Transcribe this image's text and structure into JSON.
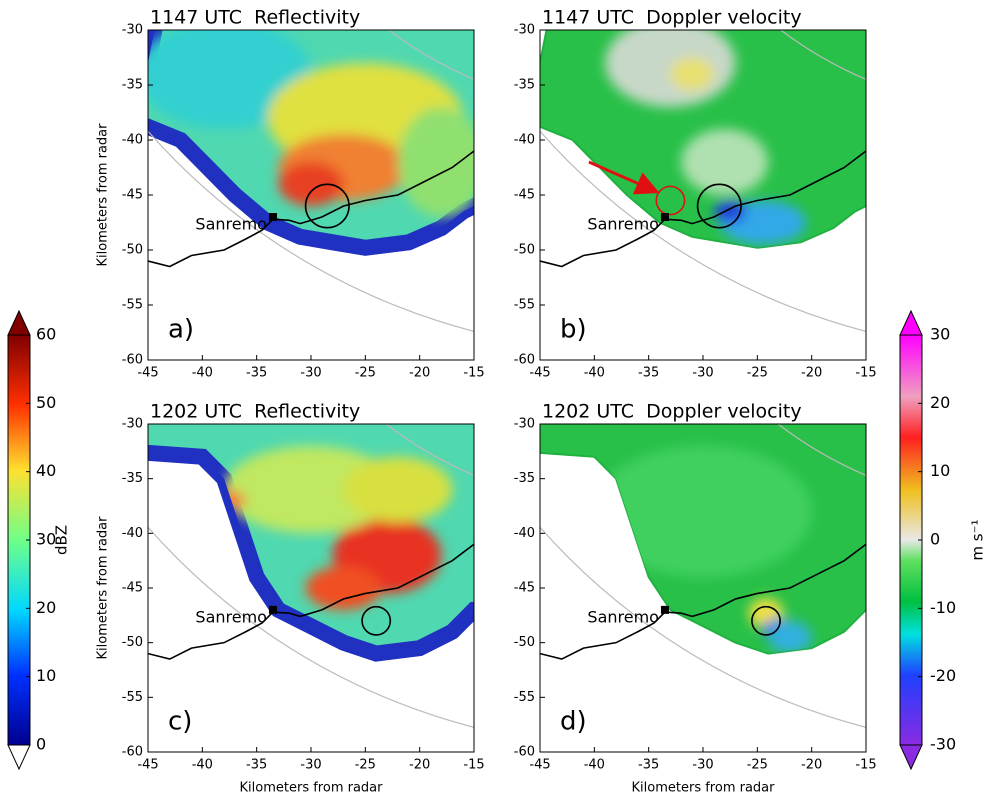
{
  "chart_data": [
    {
      "type": "heatmap",
      "title": "1147 UTC  Reflectivity",
      "ylabel": "Kilometers from radar",
      "panel_label": "a)",
      "annotation": "Sanremo",
      "xlim": [
        -45,
        -15
      ],
      "ylim": [
        -60,
        -30
      ],
      "xticks": [
        -45,
        -40,
        -35,
        -30,
        -25,
        -20,
        -15
      ],
      "yticks": [
        -60,
        -55,
        -50,
        -45,
        -40,
        -35,
        -30
      ]
    },
    {
      "type": "heatmap",
      "title": "1147 UTC  Doppler velocity",
      "panel_label": "b)",
      "annotation": "Sanremo",
      "xlim": [
        -45,
        -15
      ],
      "ylim": [
        -60,
        -30
      ],
      "xticks": [
        -45,
        -40,
        -35,
        -30,
        -25,
        -20,
        -15
      ],
      "yticks": [
        -60,
        -55,
        -50,
        -45,
        -40,
        -35,
        -30
      ]
    },
    {
      "type": "heatmap",
      "title": "1202 UTC  Reflectivity",
      "ylabel": "Kilometers from radar",
      "xlabel": "Kilometers from radar",
      "panel_label": "c)",
      "annotation": "Sanremo",
      "xlim": [
        -45,
        -15
      ],
      "ylim": [
        -60,
        -30
      ],
      "xticks": [
        -45,
        -40,
        -35,
        -30,
        -25,
        -20,
        -15
      ],
      "yticks": [
        -60,
        -55,
        -50,
        -45,
        -40,
        -35,
        -30
      ]
    },
    {
      "type": "heatmap",
      "title": "1202 UTC  Doppler velocity",
      "xlabel": "Kilometers from radar",
      "panel_label": "d)",
      "annotation": "Sanremo",
      "xlim": [
        -45,
        -15
      ],
      "ylim": [
        -60,
        -30
      ],
      "xticks": [
        -45,
        -40,
        -35,
        -30,
        -25,
        -20,
        -15
      ],
      "yticks": [
        -60,
        -55,
        -50,
        -45,
        -40,
        -35,
        -30
      ]
    }
  ],
  "colorbars": [
    {
      "label": "dBZ",
      "lim": [
        0,
        60
      ],
      "ticks": [
        0,
        10,
        20,
        30,
        40,
        50,
        60
      ]
    },
    {
      "label": "m s⁻¹",
      "lim": [
        -30,
        30
      ],
      "ticks": [
        -30,
        -20,
        -10,
        0,
        10,
        20,
        30
      ]
    }
  ]
}
